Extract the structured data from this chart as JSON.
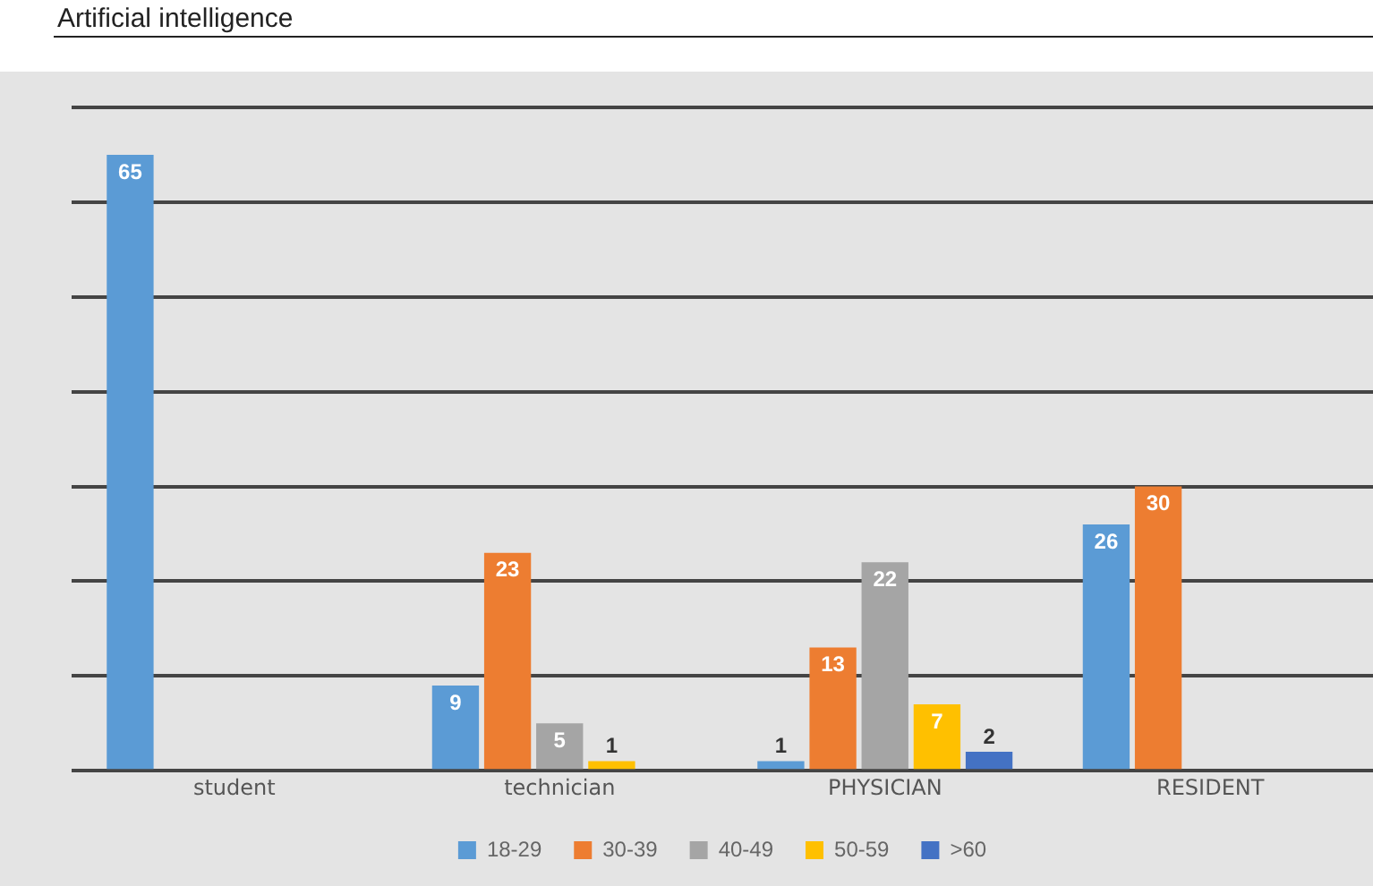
{
  "chart_data": {
    "type": "bar",
    "annotations": [
      "Artificial intelligence"
    ],
    "categories": [
      "student",
      "technician",
      "PHYSICIAN",
      "RESIDENT"
    ],
    "series": [
      {
        "name": "18-29",
        "color": "#5b9bd5",
        "values": [
          65,
          9,
          1,
          26
        ]
      },
      {
        "name": "30-39",
        "color": "#ed7d31",
        "values": [
          null,
          23,
          13,
          30
        ]
      },
      {
        "name": "40-49",
        "color": "#a5a5a5",
        "values": [
          null,
          5,
          22,
          null
        ]
      },
      {
        "name": "50-59",
        "color": "#ffc000",
        "values": [
          null,
          1,
          7,
          null
        ]
      },
      {
        "name": ">60",
        "color": "#4472c4",
        "values": [
          null,
          null,
          2,
          null
        ]
      }
    ],
    "ylim": [
      0,
      70
    ],
    "yticks": [
      {
        "value": 0,
        "label": null
      },
      {
        "value": 10,
        "label": null
      },
      {
        "value": 20,
        "label": null
      },
      {
        "value": 30,
        "label": null
      },
      {
        "value": 40,
        "label": null
      },
      {
        "value": 50,
        "label": null
      },
      {
        "value": 60,
        "label": null
      },
      {
        "value": 70,
        "label": null
      }
    ],
    "grid": "y",
    "tick_labels": "x",
    "legend": "bottom",
    "data_labels": true
  }
}
